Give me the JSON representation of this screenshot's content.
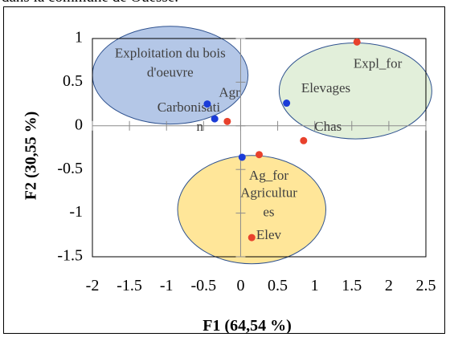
{
  "caption_fragment": "dans la commune de Ouessè.",
  "chart_data": {
    "type": "scatter",
    "title": "",
    "xlabel": "F1 (64,54 %)",
    "ylabel": "F2 (30,55 %)",
    "xlim": [
      -2,
      2.5
    ],
    "ylim": [
      -1.5,
      1
    ],
    "x_ticks": [
      -2,
      -1.5,
      -1,
      -0.5,
      0,
      0.5,
      1,
      1.5,
      2,
      2.5
    ],
    "y_ticks": [
      -1.5,
      -1,
      -0.5,
      0,
      0.5,
      1
    ],
    "x_tick_labels": [
      "-2",
      "-1.5",
      "-1",
      "-0.5",
      "0",
      "0.5",
      "1",
      "1.5",
      "2",
      "2.5"
    ],
    "y_tick_labels": [
      "-1.5",
      "-1",
      "-0.5",
      "0",
      "0.5",
      "1"
    ],
    "grid": false,
    "point_colors": {
      "blue": "#1a3cd8",
      "red": "#e8412c"
    },
    "points": [
      {
        "x": -0.45,
        "y": 0.25,
        "color": "blue"
      },
      {
        "x": -0.35,
        "y": 0.08,
        "color": "blue"
      },
      {
        "x": -0.18,
        "y": 0.05,
        "color": "red"
      },
      {
        "x": 0.62,
        "y": 0.26,
        "color": "blue"
      },
      {
        "x": 1.57,
        "y": 0.96,
        "color": "red"
      },
      {
        "x": 0.85,
        "y": -0.17,
        "color": "red"
      },
      {
        "x": 0.02,
        "y": -0.36,
        "color": "blue"
      },
      {
        "x": 0.25,
        "y": -0.33,
        "color": "red"
      },
      {
        "x": 0.15,
        "y": -1.28,
        "color": "red"
      }
    ],
    "groups": [
      {
        "fill": "#b4c7e7",
        "stroke": "#2f528f",
        "cx": -0.95,
        "cy": 0.58,
        "rx": 1.05,
        "ry": 0.56,
        "labels": [
          {
            "text": "Exploitation du bois",
            "x": -0.95,
            "y": 0.82
          },
          {
            "text": "d'oeuvre",
            "x": -0.95,
            "y": 0.6
          },
          {
            "text": "Agr",
            "x": -0.15,
            "y": 0.37
          },
          {
            "text": "Carbonisati",
            "x": -0.7,
            "y": 0.2
          },
          {
            "text": "n",
            "x": -0.55,
            "y": -0.02
          }
        ]
      },
      {
        "fill": "#e2efda",
        "stroke": "#2f528f",
        "cx": 1.55,
        "cy": 0.4,
        "rx": 1.03,
        "ry": 0.55,
        "labels": [
          {
            "text": "Expl_for",
            "x": 1.85,
            "y": 0.7
          },
          {
            "text": "Elevages",
            "x": 1.15,
            "y": 0.42
          },
          {
            "text": "Chas",
            "x": 1.18,
            "y": -0.02
          }
        ]
      },
      {
        "fill": "#ffe699",
        "stroke": "#2f528f",
        "cx": 0.15,
        "cy": -0.96,
        "rx": 1.0,
        "ry": 0.62,
        "labels": [
          {
            "text": "Ag_for",
            "x": 0.38,
            "y": -0.58
          },
          {
            "text": "Agricultur",
            "x": 0.38,
            "y": -0.78
          },
          {
            "text": "es",
            "x": 0.38,
            "y": -1.0
          },
          {
            "text": "Elev",
            "x": 0.38,
            "y": -1.26
          }
        ]
      }
    ]
  }
}
